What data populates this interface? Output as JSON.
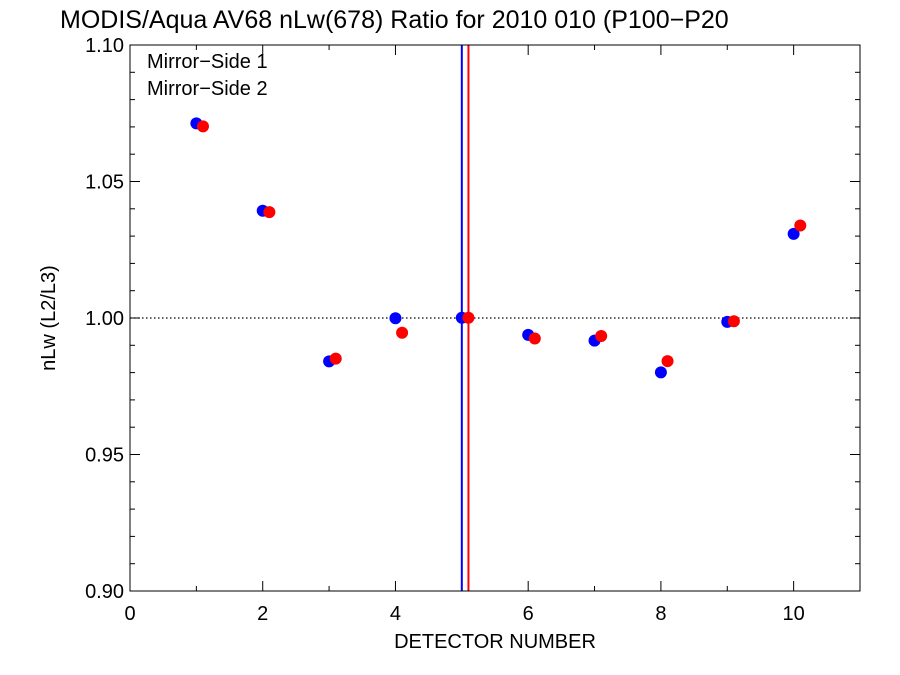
{
  "chart_data": {
    "type": "scatter",
    "title": "MODIS/Aqua AV68 nLw(678) Ratio for 2010 010 (P100−P20",
    "xlabel": "DETECTOR NUMBER",
    "ylabel": "nLw (L2/L3)",
    "xlim": [
      0,
      11
    ],
    "ylim": [
      0.9,
      1.1
    ],
    "x_ticks": [
      "0",
      "2",
      "4",
      "6",
      "8",
      "10"
    ],
    "y_ticks": [
      "0.90",
      "0.95",
      "1.00",
      "1.05",
      "1.10"
    ],
    "reference_line_y": 1.0,
    "legend_position": "top-left",
    "series": [
      {
        "name": "Mirror−Side 1",
        "color": "#0000ff",
        "x": [
          1,
          2,
          3,
          4,
          5,
          6,
          7,
          8,
          9,
          10
        ],
        "y": [
          1.0713,
          1.0393,
          0.9841,
          0.9999,
          1.0001,
          0.9938,
          0.9917,
          0.9801,
          0.9986,
          1.0308
        ],
        "vertical_line_x": 5.0
      },
      {
        "name": "Mirror−Side 2",
        "color": "#ff0000",
        "x": [
          1.1,
          2.1,
          3.1,
          4.1,
          5.1,
          6.1,
          7.1,
          8.1,
          9.1,
          10.1
        ],
        "y": [
          1.0702,
          1.0388,
          0.9851,
          0.9946,
          1.0001,
          0.9925,
          0.9934,
          0.9842,
          0.9988,
          1.0339
        ],
        "vertical_line_x": 5.1
      }
    ]
  }
}
